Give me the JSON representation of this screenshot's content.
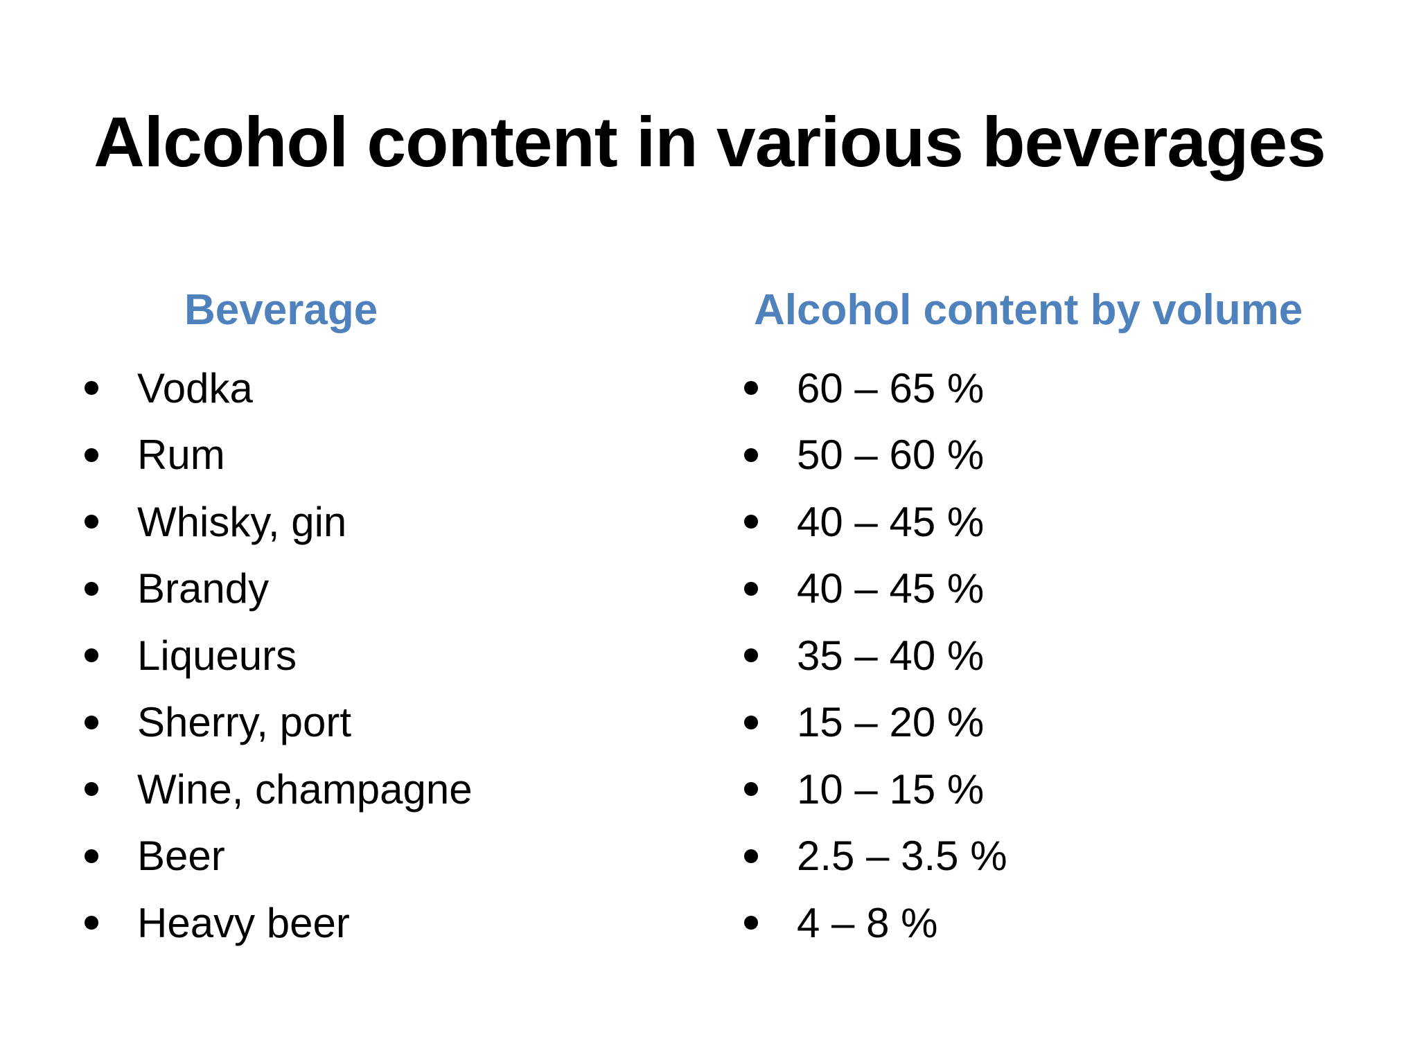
{
  "slide": {
    "title": "Alcohol content in various beverages",
    "headers": {
      "beverage": "Beverage",
      "alcohol": "Alcohol content by volume"
    },
    "beverages": [
      "Vodka",
      "Rum",
      "Whisky, gin",
      "Brandy",
      "Liqueurs",
      "Sherry, port",
      "Wine, champagne",
      "Beer",
      "Heavy beer"
    ],
    "alcohol_content": [
      "60 – 65 %",
      "50 – 60 %",
      "40 – 45 %",
      "40 – 45 %",
      "35 – 40 %",
      "15 – 20 %",
      "10 – 15 %",
      "2.5 – 3.5 %",
      "4 – 8 %"
    ],
    "colors": {
      "header_accent": "#4f81bd",
      "text": "#000000",
      "background": "#ffffff"
    }
  }
}
